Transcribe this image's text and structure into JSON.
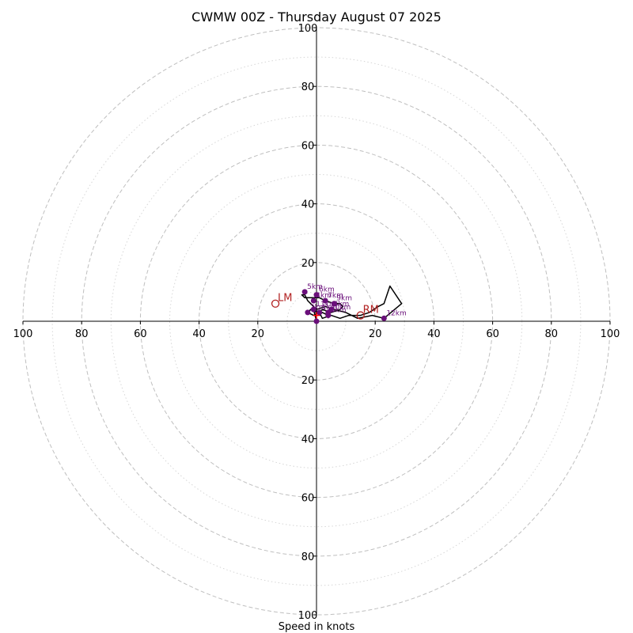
{
  "chart_data": {
    "type": "hodograph",
    "title": "CWMW 00Z - Thursday August 07 2025",
    "xlabel": "Speed in knots",
    "ring_step_major": 20,
    "ring_step_minor": 10,
    "range": [
      -100,
      100
    ],
    "axis_ticks": [
      {
        "value": -100,
        "label": "100"
      },
      {
        "value": -80,
        "label": "80"
      },
      {
        "value": -60,
        "label": "60"
      },
      {
        "value": -40,
        "label": "40"
      },
      {
        "value": -20,
        "label": "20"
      },
      {
        "value": 20,
        "label": "20"
      },
      {
        "value": 40,
        "label": "40"
      },
      {
        "value": 60,
        "label": "60"
      },
      {
        "value": 80,
        "label": "80"
      },
      {
        "value": 100,
        "label": "100"
      }
    ],
    "hodograph_line": [
      [
        0,
        0
      ],
      [
        -1,
        4
      ],
      [
        1,
        3
      ],
      [
        2,
        1
      ],
      [
        5,
        2
      ],
      [
        8,
        1
      ],
      [
        11,
        2
      ],
      [
        15,
        2
      ],
      [
        18,
        3
      ],
      [
        21,
        5
      ],
      [
        23,
        6
      ],
      [
        25,
        12
      ],
      [
        29,
        6
      ],
      [
        23,
        1
      ],
      [
        19,
        2
      ],
      [
        14,
        1
      ],
      [
        10,
        3
      ],
      [
        6,
        4
      ],
      [
        3,
        5
      ],
      [
        0,
        4
      ],
      [
        -2,
        6
      ],
      [
        -3,
        7
      ],
      [
        -4,
        9
      ],
      [
        -5,
        9
      ],
      [
        -4,
        8
      ],
      [
        -3,
        8
      ],
      [
        -1,
        8
      ],
      [
        1,
        8
      ],
      [
        3,
        7
      ],
      [
        6,
        6
      ],
      [
        8,
        6
      ],
      [
        9,
        5
      ],
      [
        8,
        4
      ],
      [
        5,
        3
      ],
      [
        2,
        4
      ],
      [
        -1,
        2
      ],
      [
        -3,
        3
      ],
      [
        -2,
        4
      ],
      [
        0,
        3
      ],
      [
        1,
        2
      ],
      [
        2,
        3
      ],
      [
        4,
        2
      ],
      [
        4,
        1
      ]
    ],
    "height_points": [
      {
        "label": "",
        "u": 0,
        "v": 0
      },
      {
        "label": "1km",
        "u": 1,
        "v": 3
      },
      {
        "label": "2km",
        "u": -3,
        "v": 3
      },
      {
        "label": "3km",
        "u": 4,
        "v": 2
      },
      {
        "label": "4km",
        "u": -1,
        "v": 7
      },
      {
        "label": "5km",
        "u": -4,
        "v": 10
      },
      {
        "label": "6km",
        "u": 0,
        "v": 9
      },
      {
        "label": "7km",
        "u": 3,
        "v": 7
      },
      {
        "label": "8km",
        "u": 5,
        "v": 4
      },
      {
        "label": "9km",
        "u": 6,
        "v": 6
      },
      {
        "label": "10km",
        "u": 4,
        "v": 3
      },
      {
        "label": "11km",
        "u": -1,
        "v": 4
      },
      {
        "label": "12km",
        "u": 23,
        "v": 1
      }
    ],
    "storm_motion": [
      {
        "label": "LM",
        "u": -14,
        "v": 6
      },
      {
        "label": "RM",
        "u": 15,
        "v": 2
      }
    ],
    "mean_wind_marker": {
      "u": 0,
      "v": 2
    },
    "colors": {
      "rings": "#bfbfbf",
      "hodograph_line": "#000000",
      "height_points": "#6a0f7a",
      "storm_motion": "#b22222",
      "mean_wind": "#ff0000"
    }
  }
}
